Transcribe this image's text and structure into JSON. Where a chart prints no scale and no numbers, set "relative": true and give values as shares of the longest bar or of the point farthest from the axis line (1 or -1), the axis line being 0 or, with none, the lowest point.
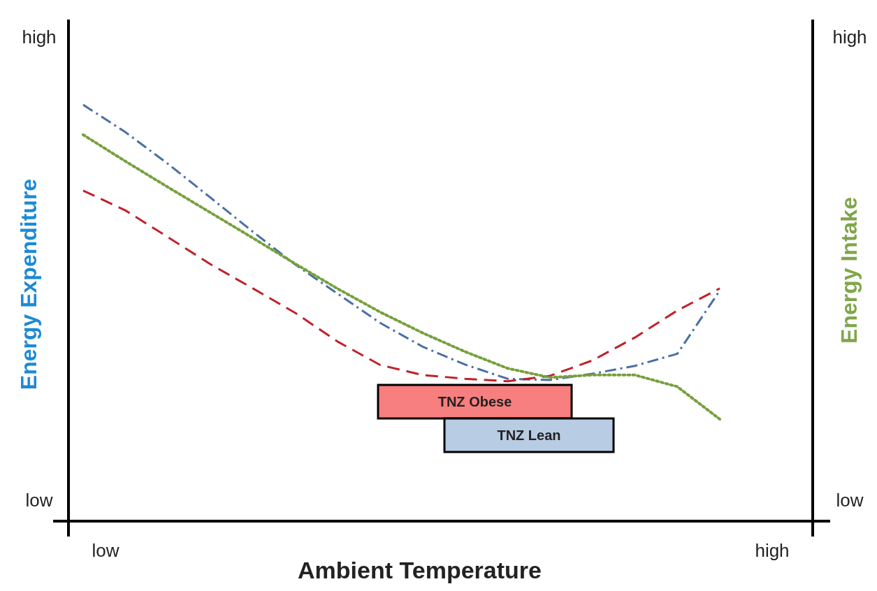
{
  "chart_data": {
    "type": "line",
    "relative": true,
    "xlabel": "Ambient Temperature",
    "ylabel": "Energy Expenditure",
    "y2label": "Energy Intake",
    "annotations": [
      "low",
      "high",
      "low",
      "high",
      "low",
      "high",
      "TNZ Obese",
      "TNZ Lean"
    ],
    "grid": false,
    "marker": "none",
    "categories": [
      null,
      null,
      null,
      null,
      null,
      null,
      null,
      null,
      null,
      null,
      null,
      null,
      null,
      null,
      null,
      null
    ],
    "series": [
      {
        "color": "#4a6fa5",
        "line_style": "dashdot",
        "values": [
          1,
          0.934,
          0.858,
          0.777,
          0.695,
          0.616,
          0.546,
          0.476,
          0.419,
          0.376,
          0.342,
          0.339,
          0.354,
          0.373,
          0.402,
          0.554
        ]
      },
      {
        "color": "#c0222a",
        "line_style": "dashed",
        "values": [
          0.794,
          0.746,
          0.682,
          0.617,
          0.559,
          0.5,
          0.431,
          0.375,
          0.351,
          0.342,
          0.336,
          0.349,
          0.386,
          0.441,
          0.506,
          0.559
        ]
      },
      {
        "color": "#77a03c",
        "line_style": "dotted",
        "values": [
          0.928,
          0.864,
          0.802,
          0.741,
          0.68,
          0.618,
          0.558,
          0.502,
          0.452,
          0.407,
          0.367,
          0.345,
          0.351,
          0.351,
          0.323,
          0.245
        ]
      }
    ]
  }
}
